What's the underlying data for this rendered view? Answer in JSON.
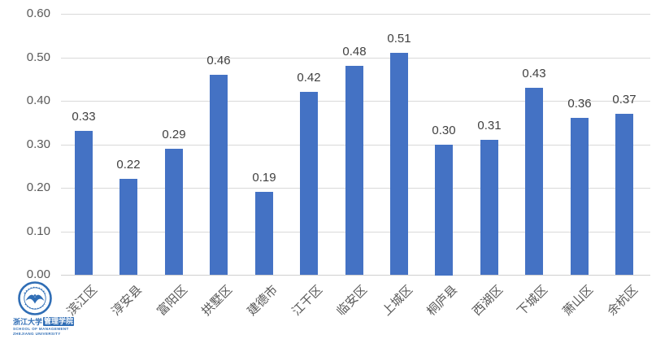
{
  "chart_data": {
    "type": "bar",
    "title": "",
    "categories": [
      "滨江区",
      "淳安县",
      "富阳区",
      "拱墅区",
      "建德市",
      "江干区",
      "临安区",
      "上城区",
      "桐庐县",
      "西湖区",
      "下城区",
      "萧山区",
      "余杭区"
    ],
    "values": [
      0.33,
      0.22,
      0.29,
      0.46,
      0.19,
      0.42,
      0.48,
      0.51,
      0.3,
      0.31,
      0.43,
      0.36,
      0.37
    ],
    "value_labels": [
      "0.33",
      "0.22",
      "0.29",
      "0.46",
      "0.19",
      "0.42",
      "0.48",
      "0.51",
      "0.30",
      "0.31",
      "0.43",
      "0.36",
      "0.37"
    ],
    "xlabel": "",
    "ylabel": "",
    "ylim": [
      0,
      0.6
    ],
    "ytick_labels": [
      "0.00",
      "0.10",
      "0.20",
      "0.30",
      "0.40",
      "0.50",
      "0.60"
    ],
    "grid": true,
    "legend": "none",
    "bar_color": "#4472c4",
    "value_label_color": "#404040",
    "axis_text_color": "#595959",
    "gridline_color": "#d9d9d9"
  },
  "logo": {
    "university_cn": "浙江大学",
    "school_cn": "管理学院",
    "english_line1": "SCHOOL OF MANAGEMENT",
    "english_line2": "ZHEJIANG UNIVERSITY",
    "color": "#2f6db5"
  }
}
